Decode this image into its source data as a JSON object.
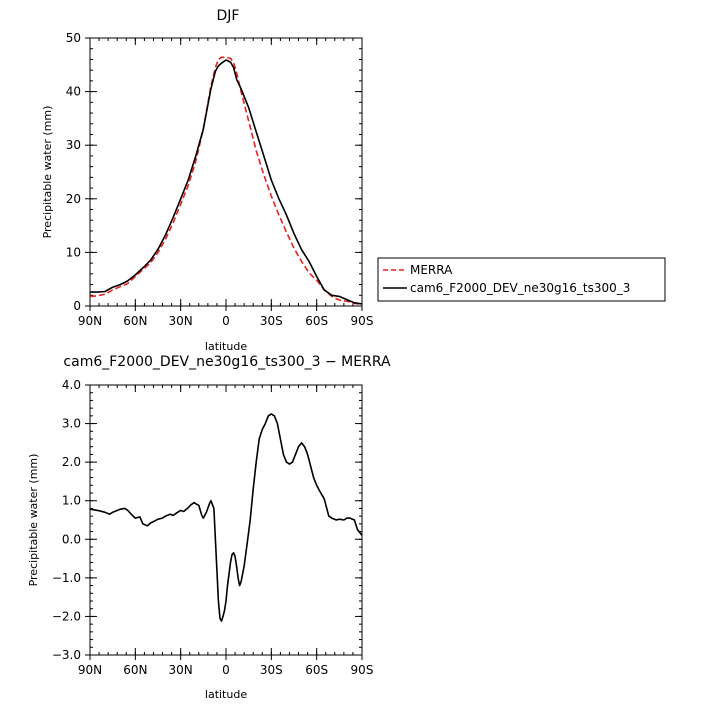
{
  "chart_data": [
    {
      "type": "line",
      "title": "DJF",
      "xlabel": "latitude",
      "ylabel": "Precipitable water (mm)",
      "xlim": [
        90,
        -90
      ],
      "ylim": [
        0,
        50
      ],
      "x_tick_values": [
        90,
        60,
        30,
        0,
        -30,
        -60,
        -90
      ],
      "x_tick_labels": [
        "90N",
        "60N",
        "30N",
        "0",
        "30S",
        "60S",
        "90S"
      ],
      "y_tick_values": [
        0,
        10,
        20,
        30,
        40,
        50
      ],
      "y_tick_labels": [
        "0",
        "10",
        "20",
        "30",
        "40",
        "50"
      ],
      "legend": {
        "placement": "right"
      },
      "series": [
        {
          "name": "MERRA",
          "color": "#e8201e",
          "style": "dashed",
          "x": [
            90,
            85,
            80,
            75,
            70,
            65,
            60,
            55,
            50,
            45,
            40,
            35,
            30,
            25,
            20,
            15,
            10,
            7,
            5,
            3,
            0,
            -3,
            -5,
            -7,
            -10,
            -15,
            -20,
            -25,
            -30,
            -35,
            -40,
            -45,
            -50,
            -55,
            -60,
            -65,
            -70,
            -75,
            -80,
            -85,
            -90
          ],
          "y": [
            1.8,
            1.9,
            2.2,
            3.0,
            3.6,
            4.2,
            5.5,
            6.8,
            8.0,
            10.0,
            12.5,
            15.5,
            19.0,
            22.5,
            27.0,
            33.0,
            41.0,
            44.5,
            46.0,
            46.4,
            46.4,
            46.2,
            45.4,
            43.5,
            40.0,
            34.5,
            29.0,
            24.5,
            20.5,
            17.0,
            13.8,
            10.8,
            8.3,
            6.2,
            4.8,
            3.0,
            1.8,
            1.1,
            0.9,
            0.5,
            0.3
          ]
        },
        {
          "name": "cam6_F2000_DEV_ne30g16_ts300_3",
          "color": "#000000",
          "style": "solid",
          "x": [
            90,
            85,
            80,
            75,
            70,
            65,
            60,
            55,
            50,
            45,
            40,
            35,
            30,
            25,
            20,
            15,
            10,
            7,
            5,
            3,
            0,
            -3,
            -5,
            -7,
            -10,
            -15,
            -20,
            -25,
            -30,
            -35,
            -40,
            -45,
            -50,
            -55,
            -60,
            -65,
            -70,
            -75,
            -80,
            -85,
            -90
          ],
          "y": [
            2.6,
            2.6,
            2.7,
            3.5,
            4.0,
            4.7,
            5.8,
            7.1,
            8.5,
            10.6,
            13.3,
            16.5,
            20.0,
            23.5,
            28.0,
            33.0,
            40.5,
            43.8,
            44.8,
            45.3,
            45.9,
            45.5,
            44.5,
            42.3,
            40.5,
            37.0,
            32.5,
            28.0,
            23.5,
            20.0,
            17.0,
            13.5,
            10.5,
            8.3,
            5.5,
            3.0,
            2.0,
            1.8,
            1.2,
            0.6,
            0.4
          ]
        }
      ]
    },
    {
      "type": "line",
      "title": "cam6_F2000_DEV_ne30g16_ts300_3 − MERRA",
      "xlabel": "latitude",
      "ylabel": "Precipitable water (mm)",
      "xlim": [
        90,
        -90
      ],
      "ylim": [
        -3.0,
        4.0
      ],
      "x_tick_values": [
        90,
        60,
        30,
        0,
        -30,
        -60,
        -90
      ],
      "x_tick_labels": [
        "90N",
        "60N",
        "30N",
        "0",
        "30S",
        "60S",
        "90S"
      ],
      "y_tick_values": [
        -3,
        -2,
        -1,
        0,
        1,
        2,
        3,
        4
      ],
      "y_tick_labels": [
        "−3.0",
        "−2.0",
        "−1.0",
        "0.0",
        "1.0",
        "2.0",
        "3.0",
        "4.0"
      ],
      "series": [
        {
          "color": "#000000",
          "style": "solid",
          "x": [
            90,
            85,
            80,
            77,
            75,
            70,
            67,
            65,
            62,
            60,
            57,
            55,
            52,
            50,
            47,
            45,
            42,
            40,
            37,
            35,
            32,
            30,
            28,
            25,
            23,
            21,
            20,
            18,
            16,
            15,
            13,
            11,
            10,
            8,
            7,
            6,
            5,
            4,
            3,
            2,
            1,
            0,
            -1,
            -3,
            -4,
            -5,
            -6,
            -7,
            -8,
            -9,
            -10,
            -12,
            -14,
            -16,
            -18,
            -20,
            -22,
            -24,
            -26,
            -28,
            -30,
            -32,
            -34,
            -36,
            -38,
            -40,
            -42,
            -44,
            -46,
            -48,
            -50,
            -52,
            -54,
            -56,
            -58,
            -60,
            -62,
            -65,
            -68,
            -70,
            -73,
            -75,
            -78,
            -80,
            -82,
            -85,
            -87,
            -90
          ],
          "y": [
            0.78,
            0.75,
            0.7,
            0.65,
            0.7,
            0.78,
            0.8,
            0.75,
            0.62,
            0.55,
            0.58,
            0.4,
            0.35,
            0.42,
            0.48,
            0.52,
            0.55,
            0.6,
            0.65,
            0.62,
            0.7,
            0.75,
            0.72,
            0.82,
            0.9,
            0.95,
            0.92,
            0.88,
            0.62,
            0.55,
            0.7,
            0.92,
            1.0,
            0.8,
            0.0,
            -0.8,
            -1.6,
            -2.05,
            -2.12,
            -2.0,
            -1.85,
            -1.6,
            -1.2,
            -0.6,
            -0.4,
            -0.35,
            -0.45,
            -0.7,
            -1.0,
            -1.2,
            -1.1,
            -0.7,
            -0.1,
            0.5,
            1.3,
            2.0,
            2.6,
            2.85,
            3.0,
            3.2,
            3.25,
            3.2,
            3.0,
            2.6,
            2.2,
            2.0,
            1.95,
            2.0,
            2.2,
            2.4,
            2.5,
            2.4,
            2.2,
            1.9,
            1.6,
            1.4,
            1.25,
            1.05,
            0.6,
            0.55,
            0.5,
            0.52,
            0.5,
            0.55,
            0.55,
            0.5,
            0.25,
            0.1
          ]
        }
      ]
    }
  ]
}
